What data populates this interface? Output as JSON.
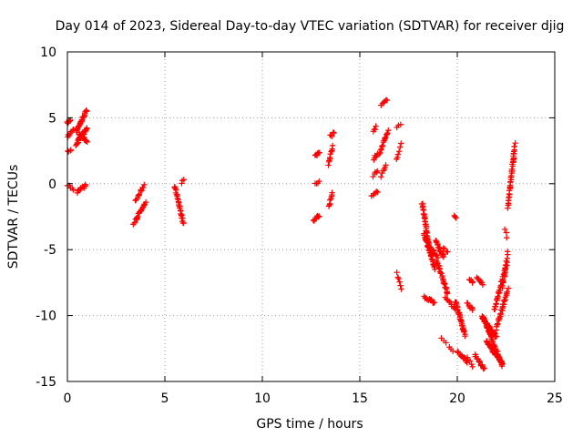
{
  "chart_data": {
    "type": "scatter",
    "title": "Day 014 of 2023, Sidereal Day-to-day VTEC variation (SDTVAR) for receiver djig",
    "xlabel": "GPS time / hours",
    "ylabel": "SDTVAR / TECUs",
    "xlim": [
      0,
      25
    ],
    "ylim": [
      -15,
      10
    ],
    "xticks": [
      0,
      5,
      10,
      15,
      20,
      25
    ],
    "yticks": [
      -15,
      -10,
      -5,
      0,
      5,
      10
    ],
    "xtick_labels": [
      "0",
      "5",
      "10",
      "15",
      "20",
      "25"
    ],
    "ytick_labels": [
      "-15",
      "-10",
      "-5",
      "0",
      "5",
      "10"
    ],
    "grid": true,
    "marker": "+",
    "color": "#ff0000",
    "arcs": [
      {
        "x0": 0.0,
        "x1": 0.15,
        "y0": 4.6,
        "y1": 4.8,
        "n": 6
      },
      {
        "x0": 0.0,
        "x1": 0.3,
        "y0": 3.6,
        "y1": 4.1,
        "n": 8
      },
      {
        "x0": 0.0,
        "x1": 0.2,
        "y0": 2.4,
        "y1": 2.6,
        "n": 4
      },
      {
        "x0": 0.0,
        "x1": 0.3,
        "y0": -0.1,
        "y1": -0.4,
        "n": 6
      },
      {
        "x0": 0.45,
        "x1": 1.0,
        "y0": 4.0,
        "y1": 5.6,
        "n": 28
      },
      {
        "x0": 0.45,
        "x1": 1.0,
        "y0": 3.0,
        "y1": 4.2,
        "n": 28
      },
      {
        "x0": 0.6,
        "x1": 1.0,
        "y0": 3.8,
        "y1": 3.2,
        "n": 14
      },
      {
        "x0": 0.5,
        "x1": 0.95,
        "y0": -0.6,
        "y1": -0.1,
        "n": 12
      },
      {
        "x0": 3.4,
        "x1": 3.6,
        "y0": -3.0,
        "y1": -2.6,
        "n": 4
      },
      {
        "x0": 3.5,
        "x1": 3.95,
        "y0": -1.3,
        "y1": -0.1,
        "n": 12
      },
      {
        "x0": 3.5,
        "x1": 4.0,
        "y0": -2.7,
        "y1": -1.5,
        "n": 18
      },
      {
        "x0": 5.5,
        "x1": 5.95,
        "y0": -0.2,
        "y1": -3.0,
        "n": 26
      },
      {
        "x0": 5.85,
        "x1": 5.95,
        "y0": 0.1,
        "y1": 0.3,
        "n": 3
      },
      {
        "x0": 12.7,
        "x1": 12.95,
        "y0": 2.1,
        "y1": 2.4,
        "n": 6
      },
      {
        "x0": 12.7,
        "x1": 12.9,
        "y0": 0.0,
        "y1": 0.2,
        "n": 4
      },
      {
        "x0": 12.6,
        "x1": 12.9,
        "y0": -2.8,
        "y1": -2.4,
        "n": 8
      },
      {
        "x0": 13.5,
        "x1": 13.65,
        "y0": 3.6,
        "y1": 3.9,
        "n": 5
      },
      {
        "x0": 13.4,
        "x1": 13.6,
        "y0": 1.5,
        "y1": 2.8,
        "n": 10
      },
      {
        "x0": 13.4,
        "x1": 13.6,
        "y0": -1.8,
        "y1": -0.6,
        "n": 8
      },
      {
        "x0": 15.7,
        "x1": 15.85,
        "y0": 4.0,
        "y1": 4.3,
        "n": 4
      },
      {
        "x0": 15.7,
        "x1": 15.9,
        "y0": 1.9,
        "y1": 2.3,
        "n": 6
      },
      {
        "x0": 15.7,
        "x1": 15.9,
        "y0": 0.6,
        "y1": 1.0,
        "n": 5
      },
      {
        "x0": 15.6,
        "x1": 15.9,
        "y0": -1.0,
        "y1": -0.6,
        "n": 6
      },
      {
        "x0": 16.0,
        "x1": 16.45,
        "y0": 2.3,
        "y1": 4.0,
        "n": 16
      },
      {
        "x0": 16.1,
        "x1": 16.4,
        "y0": 6.0,
        "y1": 6.4,
        "n": 6
      },
      {
        "x0": 16.1,
        "x1": 16.35,
        "y0": 0.6,
        "y1": 1.5,
        "n": 6
      },
      {
        "x0": 16.9,
        "x1": 17.1,
        "y0": 4.3,
        "y1": 4.5,
        "n": 3
      },
      {
        "x0": 16.9,
        "x1": 17.1,
        "y0": 1.8,
        "y1": 3.0,
        "n": 6
      },
      {
        "x0": 16.9,
        "x1": 17.1,
        "y0": -6.8,
        "y1": -7.9,
        "n": 6
      },
      {
        "x0": 18.2,
        "x1": 18.55,
        "y0": -1.5,
        "y1": -4.8,
        "n": 34
      },
      {
        "x0": 18.3,
        "x1": 18.85,
        "y0": -3.8,
        "y1": -6.4,
        "n": 34
      },
      {
        "x0": 18.3,
        "x1": 18.85,
        "y0": -8.6,
        "y1": -9.0,
        "n": 12
      },
      {
        "x0": 18.6,
        "x1": 19.0,
        "y0": -4.8,
        "y1": -5.6,
        "n": 10
      },
      {
        "x0": 18.9,
        "x1": 19.3,
        "y0": -4.4,
        "y1": -5.6,
        "n": 18
      },
      {
        "x0": 18.95,
        "x1": 19.5,
        "y0": -5.8,
        "y1": -8.3,
        "n": 26
      },
      {
        "x0": 19.3,
        "x1": 19.5,
        "y0": -4.8,
        "y1": -5.2,
        "n": 4
      },
      {
        "x0": 19.2,
        "x1": 19.4,
        "y0": -11.8,
        "y1": -12.1,
        "n": 3
      },
      {
        "x0": 19.4,
        "x1": 19.9,
        "y0": -8.6,
        "y1": -9.6,
        "n": 10
      },
      {
        "x0": 19.6,
        "x1": 19.8,
        "y0": -12.4,
        "y1": -12.7,
        "n": 3
      },
      {
        "x0": 19.85,
        "x1": 19.95,
        "y0": -2.4,
        "y1": -2.6,
        "n": 3
      },
      {
        "x0": 19.9,
        "x1": 20.4,
        "y0": -8.9,
        "y1": -11.5,
        "n": 30
      },
      {
        "x0": 20.0,
        "x1": 20.5,
        "y0": -12.7,
        "y1": -13.5,
        "n": 14
      },
      {
        "x0": 20.5,
        "x1": 20.8,
        "y0": -9.0,
        "y1": -9.6,
        "n": 8
      },
      {
        "x0": 20.6,
        "x1": 20.8,
        "y0": -7.2,
        "y1": -7.5,
        "n": 5
      },
      {
        "x0": 20.5,
        "x1": 20.8,
        "y0": -13.2,
        "y1": -13.8,
        "n": 5
      },
      {
        "x0": 21.0,
        "x1": 21.3,
        "y0": -7.2,
        "y1": -7.6,
        "n": 8
      },
      {
        "x0": 20.9,
        "x1": 21.4,
        "y0": -13.0,
        "y1": -14.1,
        "n": 14
      },
      {
        "x0": 21.3,
        "x1": 22.3,
        "y0": -10.0,
        "y1": -13.8,
        "n": 50
      },
      {
        "x0": 21.3,
        "x1": 22.0,
        "y0": -10.2,
        "y1": -11.6,
        "n": 30
      },
      {
        "x0": 21.5,
        "x1": 22.3,
        "y0": -12.0,
        "y1": -13.6,
        "n": 36
      },
      {
        "x0": 21.9,
        "x1": 22.55,
        "y0": -9.6,
        "y1": -6.0,
        "n": 34
      },
      {
        "x0": 22.0,
        "x1": 22.6,
        "y0": -11.0,
        "y1": -8.0,
        "n": 28
      },
      {
        "x0": 22.3,
        "x1": 22.6,
        "y0": -8.0,
        "y1": -5.2,
        "n": 14
      },
      {
        "x0": 22.45,
        "x1": 22.55,
        "y0": -3.4,
        "y1": -4.0,
        "n": 3
      },
      {
        "x0": 22.6,
        "x1": 22.95,
        "y0": -1.8,
        "y1": 3.0,
        "n": 40
      }
    ]
  }
}
